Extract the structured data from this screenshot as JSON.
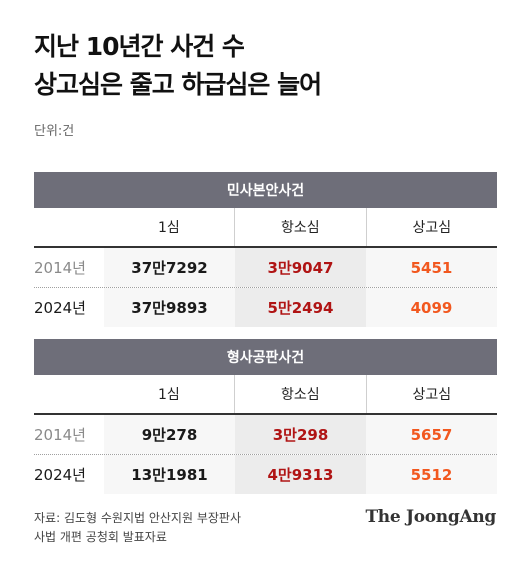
{
  "title": {
    "line1": "지난 10년간 사건 수",
    "line2": "상고심은 줄고 하급심은 늘어"
  },
  "unit_label": "단위:건",
  "columns": [
    "1심",
    "항소심",
    "상고심"
  ],
  "chart_data": {
    "type": "table",
    "tables": [
      {
        "name": "민사본안사건",
        "rows": [
          {
            "year": "2014년",
            "values": [
              "37만7292",
              "3만9047",
              "5451"
            ]
          },
          {
            "year": "2024년",
            "values": [
              "37만9893",
              "5만2494",
              "4099"
            ]
          }
        ]
      },
      {
        "name": "형사공판사건",
        "rows": [
          {
            "year": "2014년",
            "values": [
              "9만278",
              "3만298",
              "5657"
            ]
          },
          {
            "year": "2024년",
            "values": [
              "13만1981",
              "4만9313",
              "5512"
            ]
          }
        ]
      }
    ]
  },
  "colors": {
    "header_band": "#6e6e79",
    "first_instance_text": "#1a1a1a",
    "appeal_text": "#b01414",
    "supreme_text": "#f2581f"
  },
  "source": {
    "line1": "자료: 김도형 수원지법 안산지원 부장판사",
    "line2": "사법 개편 공청회 발표자료"
  },
  "brand": "The JoongAng"
}
